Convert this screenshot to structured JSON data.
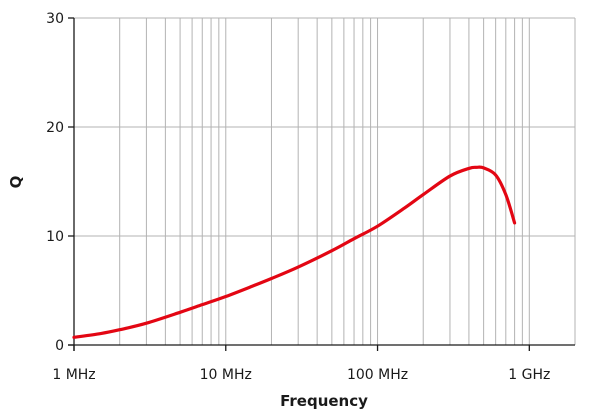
{
  "chart_data": {
    "type": "line",
    "xlabel": "Frequency",
    "ylabel": "Q",
    "x_scale": "log",
    "xlim": [
      1,
      2000
    ],
    "ylim": [
      0,
      30
    ],
    "grid": true,
    "legend": "none",
    "x_ticks": [
      {
        "value": 1,
        "label": "1 MHz"
      },
      {
        "value": 10,
        "label": "10 MHz"
      },
      {
        "value": 100,
        "label": "100 MHz"
      },
      {
        "value": 1000,
        "label": "1 GHz"
      }
    ],
    "y_ticks": [
      {
        "value": 0,
        "label": "0"
      },
      {
        "value": 10,
        "label": "10"
      },
      {
        "value": 20,
        "label": "20"
      },
      {
        "value": 30,
        "label": "30"
      }
    ],
    "series": [
      {
        "color": "#e30613",
        "x": [
          1,
          1.5,
          2,
          3,
          5,
          7,
          10,
          15,
          20,
          30,
          50,
          70,
          100,
          150,
          200,
          300,
          400,
          450,
          500,
          600,
          700,
          800
        ],
        "y": [
          0.7,
          1.05,
          1.4,
          2.0,
          3.0,
          3.7,
          4.45,
          5.4,
          6.1,
          7.15,
          8.65,
          9.75,
          10.9,
          12.55,
          13.8,
          15.5,
          16.2,
          16.3,
          16.25,
          15.6,
          13.8,
          11.2
        ]
      }
    ]
  }
}
